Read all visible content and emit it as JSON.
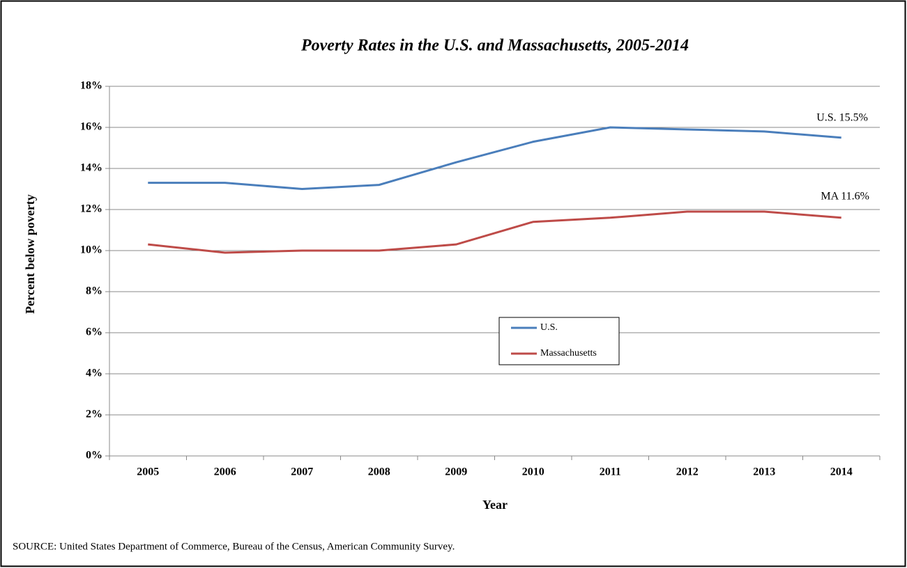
{
  "chart_data": {
    "type": "line",
    "title": "Poverty Rates in the U.S. and Massachusetts, 2005-2014",
    "x_label": "Year",
    "y_label": "Percent below poverty",
    "source": "SOURCE:  United States Department of Commerce, Bureau of the Census, American Community Survey.",
    "categories": [
      "2005",
      "2006",
      "2007",
      "2008",
      "2009",
      "2010",
      "2011",
      "2012",
      "2013",
      "2014"
    ],
    "series": [
      {
        "name": "U.S.",
        "color": "#4a7ebb",
        "values": [
          13.3,
          13.3,
          13.0,
          13.2,
          14.3,
          15.3,
          16.0,
          15.9,
          15.8,
          15.5
        ]
      },
      {
        "name": "Massachusetts",
        "color": "#be4b48",
        "values": [
          10.3,
          9.9,
          10.0,
          10.0,
          10.3,
          11.4,
          11.6,
          11.9,
          11.9,
          11.6
        ]
      }
    ],
    "annotations": [
      "U.S. 15.5%",
      "MA 11.6%"
    ],
    "ylim": [
      0,
      18
    ],
    "yticks": [
      {
        "value": 0,
        "label": "0%"
      },
      {
        "value": 2,
        "label": "2%"
      },
      {
        "value": 4,
        "label": "4%"
      },
      {
        "value": 6,
        "label": "6%"
      },
      {
        "value": 8,
        "label": "8%"
      },
      {
        "value": 10,
        "label": "10%"
      },
      {
        "value": 12,
        "label": "12%"
      },
      {
        "value": 14,
        "label": "14%"
      },
      {
        "value": 16,
        "label": "16%"
      },
      {
        "value": 18,
        "label": "18%"
      }
    ],
    "grid": true
  }
}
